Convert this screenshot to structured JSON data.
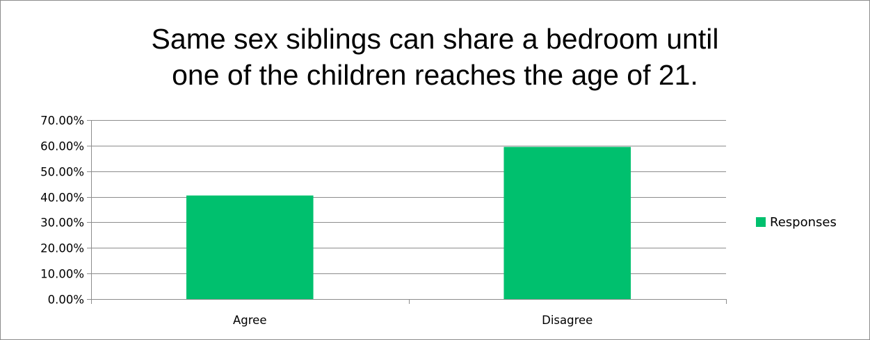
{
  "chart_data": {
    "type": "bar",
    "title_lines": [
      "Same sex siblings can share a bedroom until",
      "one of the children reaches the age of 21."
    ],
    "categories": [
      "Agree",
      "Disagree"
    ],
    "series": [
      {
        "name": "Responses",
        "values": [
          0.405,
          0.595
        ]
      }
    ],
    "ylim": [
      0,
      0.7
    ],
    "y_ticks": [
      0,
      0.1,
      0.2,
      0.3,
      0.4,
      0.5,
      0.6,
      0.7
    ],
    "y_tick_labels": [
      "0.00%",
      "10.00%",
      "20.00%",
      "30.00%",
      "40.00%",
      "50.00%",
      "60.00%",
      "70.00%"
    ],
    "grid": true,
    "legend_position": "right",
    "bar_color": "#00c06e",
    "grid_color": "#8c8c8c"
  }
}
